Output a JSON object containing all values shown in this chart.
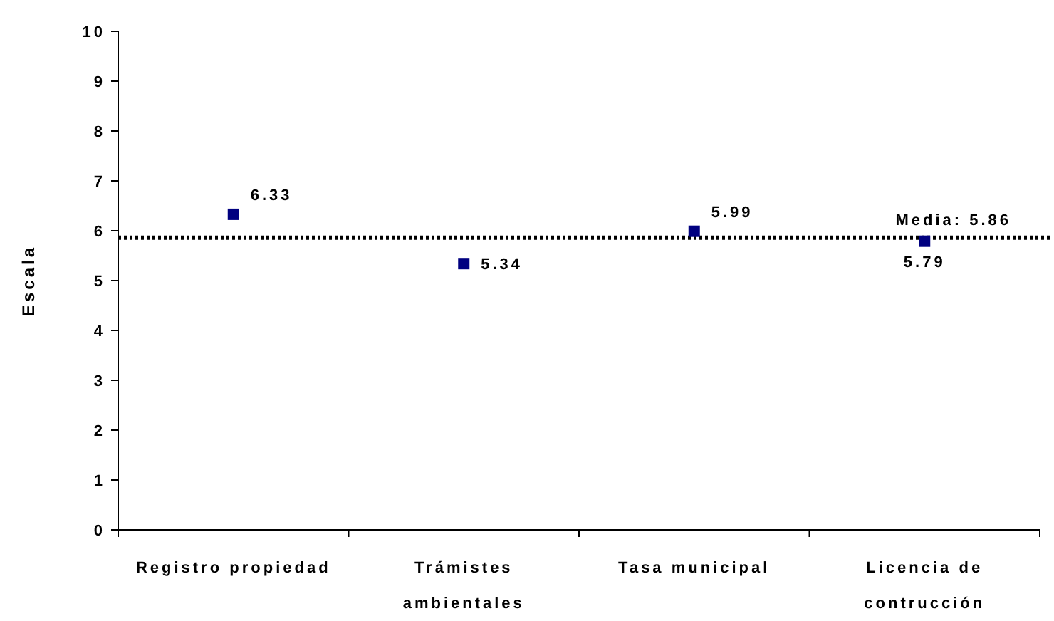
{
  "chart_data": {
    "type": "scatter",
    "ylabel": "Escala",
    "categories": [
      "Registro propiedad",
      "Trámistes\nambientales",
      "Tasa municipal",
      "Licencia de\ncontrucción"
    ],
    "series": [
      {
        "color": "#000080",
        "values": [
          6.33,
          5.34,
          5.99,
          5.79
        ]
      }
    ],
    "ylim": [
      0,
      10
    ],
    "yticks": [
      0,
      1,
      2,
      3,
      4,
      5,
      6,
      7,
      8,
      9,
      10
    ],
    "marker": "square",
    "data_labels": true,
    "grid": false,
    "ref_lines": [
      {
        "axis": "y",
        "value": 5.86,
        "label": "Media: 5.86",
        "color": "#000000",
        "line_style": "dotted"
      }
    ]
  }
}
